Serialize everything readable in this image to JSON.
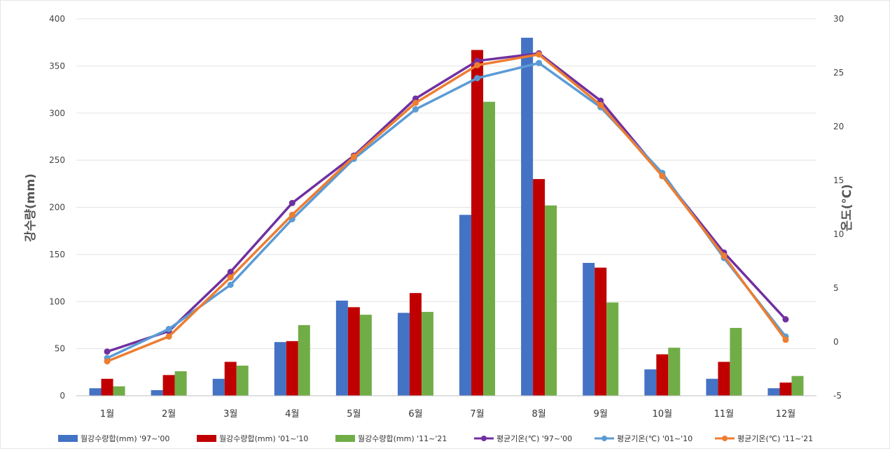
{
  "chart_data": {
    "type": "bar+line",
    "categories": [
      "1월",
      "2월",
      "3월",
      "4월",
      "5월",
      "6월",
      "7월",
      "8월",
      "9월",
      "10월",
      "11월",
      "12월"
    ],
    "ylabel_left": "강수량(mm)",
    "ylabel_right": "온도(℃)",
    "ylim_left": [
      0,
      400
    ],
    "ylim_right": [
      -5,
      30
    ],
    "yticks_left": [
      "0",
      "50",
      "100",
      "150",
      "200",
      "250",
      "300",
      "350",
      "400"
    ],
    "yticks_right": [
      "-5",
      "0",
      "5",
      "10",
      "15",
      "20",
      "25",
      "30"
    ],
    "grid": true,
    "legend_position": "bottom",
    "bar_series": [
      {
        "name": "월강수량합(mm) '97~'00",
        "color": "#4472c4",
        "values": [
          8,
          6,
          18,
          57,
          101,
          88,
          192,
          380,
          141,
          28,
          18,
          8
        ]
      },
      {
        "name": "월강수량합(mm) '01~'10",
        "color": "#c00000",
        "values": [
          18,
          22,
          36,
          58,
          94,
          109,
          367,
          230,
          136,
          44,
          36,
          14
        ]
      },
      {
        "name": "월강수량합(mm) '11~'21",
        "color": "#70ad47",
        "values": [
          10,
          26,
          32,
          75,
          86,
          89,
          312,
          202,
          99,
          51,
          72,
          21
        ]
      }
    ],
    "line_series": [
      {
        "name": "평균기온(℃) '97~'00",
        "color": "#7030a0",
        "values": [
          -0.9,
          1.0,
          6.5,
          12.9,
          17.3,
          22.6,
          26.1,
          26.8,
          22.4,
          15.5,
          8.3,
          2.1
        ]
      },
      {
        "name": "평균기온(℃) '01~'10",
        "color": "#5b9bd5",
        "values": [
          -1.5,
          1.2,
          5.3,
          11.4,
          17.0,
          21.6,
          24.5,
          25.9,
          21.8,
          15.7,
          7.8,
          0.5
        ]
      },
      {
        "name": "평균기온(℃) '11~'21",
        "color": "#ed7d31",
        "values": [
          -1.8,
          0.5,
          6.0,
          11.8,
          17.2,
          22.2,
          25.7,
          26.7,
          22.0,
          15.4,
          8.0,
          0.2
        ]
      }
    ]
  }
}
